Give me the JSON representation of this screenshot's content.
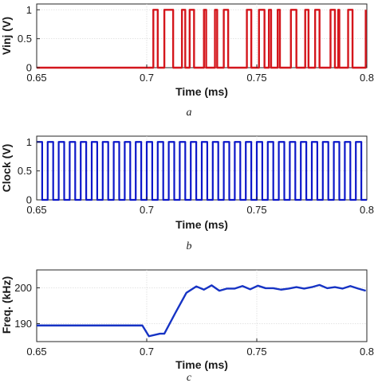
{
  "colors": {
    "vinj": "#d4161c",
    "clock": "#0c17c9",
    "freq": "#1633c4"
  },
  "chart_data": [
    {
      "type": "line",
      "caption": "a",
      "xlabel": "Time (ms)",
      "ylabel": "Vinj (V)",
      "xlim": [
        0.65,
        0.8
      ],
      "ylim": [
        0,
        1.1
      ],
      "xticks": [
        "0.65",
        "0.7",
        "0.75",
        "0.8"
      ],
      "yticks": [
        "0",
        "0.5",
        "1"
      ],
      "grid": true,
      "step": true,
      "series": [
        {
          "x": [
            0.65,
            0.703,
            0.705,
            0.708,
            0.712,
            0.716,
            0.7175,
            0.7195,
            0.7215,
            0.726,
            0.727,
            0.731,
            0.732,
            0.735,
            0.737,
            0.7455,
            0.7475,
            0.751,
            0.7535,
            0.7555,
            0.7565,
            0.7595,
            0.7605,
            0.7655,
            0.768,
            0.772,
            0.7735,
            0.7765,
            0.7785,
            0.7835,
            0.7855,
            0.787,
            0.7875,
            0.7915,
            0.7935,
            0.7995
          ],
          "y": [
            0,
            1,
            0,
            1,
            0,
            1,
            0,
            1,
            0,
            1,
            0,
            1,
            0,
            1,
            0,
            1,
            0,
            1,
            0,
            1,
            0,
            1,
            0,
            1,
            0,
            1,
            0,
            1,
            0,
            1,
            0,
            1,
            0,
            1,
            0,
            1
          ]
        }
      ]
    },
    {
      "type": "line",
      "caption": "b",
      "xlabel": "Time (ms)",
      "ylabel": "Clock (V)",
      "xlim": [
        0.65,
        0.8
      ],
      "ylim": [
        0,
        1.1
      ],
      "xticks": [
        "0.65",
        "0.7",
        "0.75",
        "0.8"
      ],
      "yticks": [
        "0",
        "0.5",
        "1"
      ],
      "grid": true,
      "square_wave": {
        "start": 0.65,
        "period": 0.005,
        "duty": 0.5,
        "low": 0,
        "high": 1
      }
    },
    {
      "type": "line",
      "caption": "c",
      "xlabel": "Time (ms)",
      "ylabel": "Freq. (kHz)",
      "xlim": [
        0.65,
        0.8
      ],
      "ylim": [
        185,
        205
      ],
      "xticks": [
        "0.65",
        "0.7",
        "0.75",
        "0.8"
      ],
      "yticks": [
        "190",
        "200"
      ],
      "grid": true,
      "series": [
        {
          "x": [
            0.65,
            0.695,
            0.698,
            0.701,
            0.706,
            0.708,
            0.713,
            0.718,
            0.7225,
            0.726,
            0.7295,
            0.733,
            0.7365,
            0.74,
            0.7435,
            0.747,
            0.7505,
            0.754,
            0.7575,
            0.761,
            0.7645,
            0.768,
            0.7715,
            0.775,
            0.7785,
            0.782,
            0.7855,
            0.789,
            0.7925,
            0.796,
            0.7995
          ],
          "y": [
            189.5,
            189.5,
            189.5,
            186.5,
            187.2,
            187.2,
            193,
            198.6,
            200.4,
            199.5,
            200.7,
            199.2,
            199.8,
            199.8,
            200.5,
            199.6,
            200.6,
            199.9,
            199.9,
            199.5,
            199.8,
            200.2,
            199.8,
            200.2,
            200.8,
            199.9,
            200.2,
            199.8,
            200.5,
            199.8,
            199.2
          ]
        }
      ]
    }
  ]
}
